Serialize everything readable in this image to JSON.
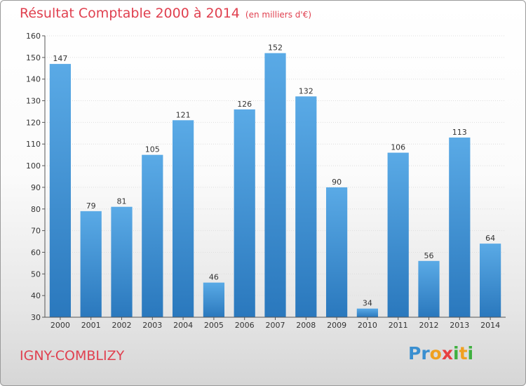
{
  "chart_data": {
    "type": "bar",
    "title": "Résultat Comptable 2000 à 2014",
    "subtitle": "(en milliers d'€)",
    "categories": [
      "2000",
      "2001",
      "2002",
      "2003",
      "2004",
      "2005",
      "2006",
      "2007",
      "2008",
      "2009",
      "2010",
      "2011",
      "2012",
      "2013",
      "2014"
    ],
    "values": [
      147,
      79,
      81,
      105,
      121,
      46,
      126,
      152,
      132,
      90,
      34,
      106,
      56,
      113,
      64
    ],
    "ylim": [
      30,
      160
    ],
    "yticks": [
      30,
      40,
      50,
      60,
      70,
      80,
      90,
      100,
      110,
      120,
      130,
      140,
      150,
      160
    ],
    "xlabel": "",
    "ylabel": "",
    "bar_color_top": "#5aaae6",
    "bar_color_bottom": "#2a78bd"
  },
  "place_name": "IGNY-COMBLIZY",
  "logo": {
    "letters": [
      "P",
      "r",
      "o",
      "x",
      "i",
      "t",
      "i"
    ]
  },
  "colors": {
    "title": "#e0404f",
    "axis": "#555555",
    "grid": "#dddddd"
  }
}
